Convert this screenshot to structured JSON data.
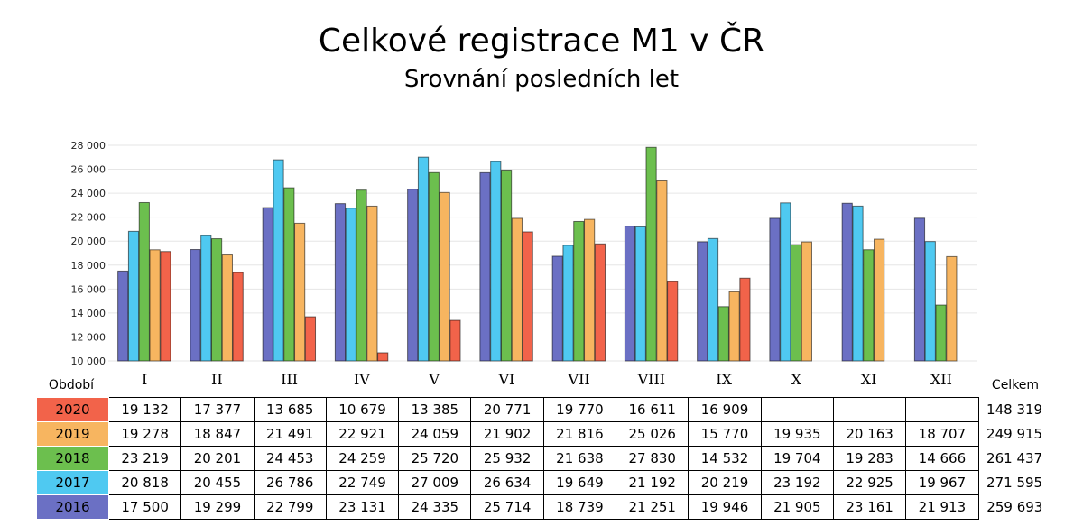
{
  "chart_data": {
    "type": "bar",
    "title": "Celkové registrace M1 v ČR",
    "subtitle": "Srovnání posledních let",
    "categories": [
      "I",
      "II",
      "III",
      "IV",
      "V",
      "VI",
      "VII",
      "VIII",
      "IX",
      "X",
      "XI",
      "XII"
    ],
    "ylim": [
      10000,
      28000
    ],
    "yticks": [
      "10 000",
      "12 000",
      "14 000",
      "16 000",
      "18 000",
      "20 000",
      "22 000",
      "24 000",
      "26 000",
      "28 000"
    ],
    "grid": true,
    "series": [
      {
        "name": "2016",
        "color": "#6b70c4",
        "values": [
          17500,
          19299,
          22799,
          23131,
          24335,
          25714,
          18739,
          21251,
          19946,
          21905,
          23161,
          21913
        ]
      },
      {
        "name": "2017",
        "color": "#4fc9f1",
        "values": [
          20818,
          20455,
          26786,
          22749,
          27009,
          26634,
          19649,
          21192,
          20219,
          23192,
          22925,
          19967
        ]
      },
      {
        "name": "2018",
        "color": "#6cbf4e",
        "values": [
          23219,
          20201,
          24453,
          24259,
          25720,
          25932,
          21638,
          27830,
          14532,
          19704,
          19283,
          14666
        ]
      },
      {
        "name": "2019",
        "color": "#f7b560",
        "values": [
          19278,
          18847,
          21491,
          22921,
          24059,
          21902,
          21816,
          25026,
          15770,
          19935,
          20163,
          18707
        ]
      },
      {
        "name": "2020",
        "color": "#f2634a",
        "values": [
          19132,
          17377,
          13685,
          10679,
          13385,
          20771,
          19770,
          16611,
          16909,
          null,
          null,
          null
        ]
      }
    ]
  },
  "table": {
    "period_label": "Období",
    "total_label": "Celkem",
    "rows": [
      {
        "year": "2020",
        "color": "#f2634a",
        "cells": [
          "19 132",
          "17 377",
          "13 685",
          "10 679",
          "13 385",
          "20 771",
          "19 770",
          "16 611",
          "16 909",
          "",
          "",
          ""
        ],
        "total": "148 319"
      },
      {
        "year": "2019",
        "color": "#f7b560",
        "cells": [
          "19 278",
          "18 847",
          "21 491",
          "22 921",
          "24 059",
          "21 902",
          "21 816",
          "25 026",
          "15 770",
          "19 935",
          "20 163",
          "18 707"
        ],
        "total": "249 915"
      },
      {
        "year": "2018",
        "color": "#6cbf4e",
        "cells": [
          "23 219",
          "20 201",
          "24 453",
          "24 259",
          "25 720",
          "25 932",
          "21 638",
          "27 830",
          "14 532",
          "19 704",
          "19 283",
          "14 666"
        ],
        "total": "261 437"
      },
      {
        "year": "2017",
        "color": "#4fc9f1",
        "cells": [
          "20 818",
          "20 455",
          "26 786",
          "22 749",
          "27 009",
          "26 634",
          "19 649",
          "21 192",
          "20 219",
          "23 192",
          "22 925",
          "19 967"
        ],
        "total": "271 595"
      },
      {
        "year": "2016",
        "color": "#6b70c4",
        "cells": [
          "17 500",
          "19 299",
          "22 799",
          "23 131",
          "24 335",
          "25 714",
          "18 739",
          "21 251",
          "19 946",
          "21 905",
          "23 161",
          "21 913"
        ],
        "total": "259 693"
      }
    ]
  }
}
